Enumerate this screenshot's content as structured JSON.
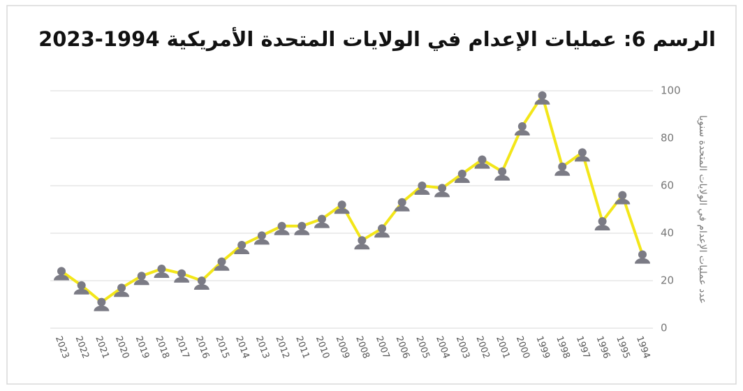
{
  "chart_data": {
    "type": "line",
    "title": "الرسم 6: عمليات الإعدام في الولايات المتحدة الأمريكية 1994-2023",
    "y_axis_label": "عدد عمليات الإعدام في الولايات المتحدة سنويا",
    "categories": [
      "2023",
      "2022",
      "2021",
      "2020",
      "2019",
      "2018",
      "2017",
      "2016",
      "2015",
      "2014",
      "2013",
      "2012",
      "2011",
      "2010",
      "2009",
      "2008",
      "2007",
      "2006",
      "2005",
      "2004",
      "2003",
      "2002",
      "2001",
      "2000",
      "1999",
      "1998",
      "1997",
      "1996",
      "1995",
      "1994"
    ],
    "series": [
      {
        "color": "#f3e619",
        "marker_color": "#7b7b85",
        "values": [
          24,
          18,
          11,
          17,
          22,
          25,
          23,
          20,
          28,
          35,
          39,
          43,
          43,
          46,
          52,
          37,
          42,
          53,
          60,
          59,
          65,
          71,
          66,
          85,
          98,
          68,
          74,
          45,
          56,
          31
        ]
      }
    ],
    "ylim": [
      0,
      100
    ],
    "yticks": [
      0,
      20,
      40,
      60,
      80,
      100
    ],
    "grid": true
  }
}
